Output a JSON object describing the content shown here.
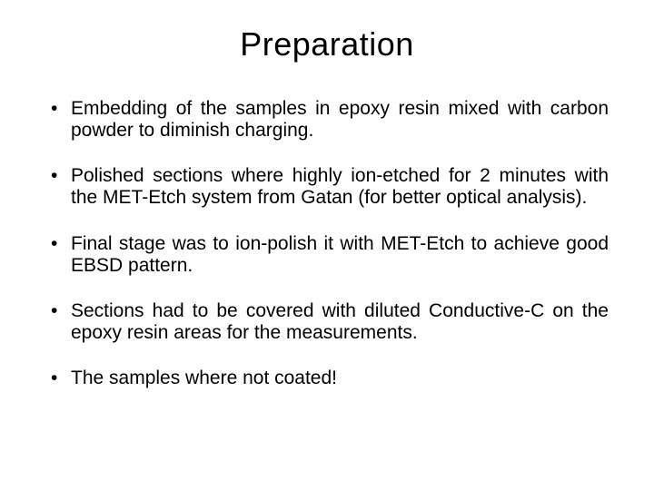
{
  "title": "Preparation",
  "bullets": [
    "Embedding of the samples in epoxy resin mixed with carbon powder to diminish charging.",
    "Polished sections where highly ion-etched for 2 minutes with the MET-Etch system from Gatan (for better optical analysis).",
    "Final stage was to ion-polish it with MET-Etch to achieve good EBSD pattern.",
    "Sections had to be covered with diluted Conductive-C on the epoxy resin areas for the measurements.",
    "The samples where not coated!"
  ],
  "colors": {
    "background": "#ffffff",
    "text": "#000000"
  },
  "typography": {
    "title_fontsize": 36,
    "body_fontsize": 21,
    "font_family": "Arial"
  }
}
